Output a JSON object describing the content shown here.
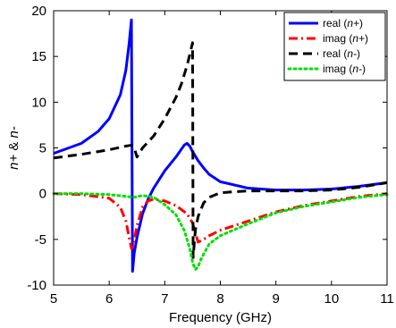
{
  "chart_data": {
    "type": "line",
    "xlabel": "Frequency (GHz)",
    "ylabel": "n+ & n-",
    "xlim": [
      5,
      11
    ],
    "ylim": [
      -10,
      20
    ],
    "xticks": [
      5,
      6,
      7,
      8,
      9,
      10,
      11
    ],
    "yticks": [
      -10,
      -5,
      0,
      5,
      10,
      15,
      20
    ],
    "xtick_labels": [
      "5",
      "6",
      "7",
      "8",
      "9",
      "10",
      "11"
    ],
    "ytick_labels": [
      "-10",
      "-5",
      "0",
      "5",
      "10",
      "15",
      "20"
    ],
    "grid": false,
    "legend_position": "top-right",
    "series": [
      {
        "name": "real (n+)",
        "color": "#0000ff",
        "style": "solid",
        "x": [
          5.0,
          5.5,
          5.8,
          6.0,
          6.2,
          6.3,
          6.36,
          6.4,
          6.41,
          6.42,
          6.45,
          6.5,
          6.6,
          6.7,
          6.8,
          7.0,
          7.2,
          7.35,
          7.4,
          7.45,
          7.5,
          7.6,
          7.7,
          7.8,
          8.0,
          8.5,
          9.0,
          9.5,
          10.0,
          10.5,
          11.0
        ],
        "y": [
          4.4,
          5.5,
          6.8,
          8.2,
          10.8,
          13.5,
          16.5,
          19.0,
          5.0,
          -8.5,
          -6.5,
          -4.8,
          -2.2,
          -0.6,
          0.6,
          2.5,
          4.0,
          5.3,
          5.5,
          5.2,
          4.6,
          3.6,
          2.8,
          2.1,
          1.3,
          0.6,
          0.4,
          0.4,
          0.5,
          0.8,
          1.2
        ]
      },
      {
        "name": "imag (n+)",
        "color": "#ff0000",
        "style": "dash-dot",
        "x": [
          5.0,
          5.5,
          6.0,
          6.2,
          6.3,
          6.35,
          6.4,
          6.43,
          6.5,
          6.6,
          6.7,
          6.8,
          7.0,
          7.2,
          7.4,
          7.5,
          7.6,
          7.7,
          7.8,
          8.0,
          8.5,
          9.0,
          9.5,
          10.0,
          10.5,
          11.0
        ],
        "y": [
          0.0,
          -0.1,
          -0.5,
          -1.5,
          -3.0,
          -4.5,
          -6.0,
          -5.8,
          -3.5,
          -1.5,
          -0.8,
          -0.6,
          -0.8,
          -1.3,
          -2.2,
          -3.2,
          -5.3,
          -5.0,
          -4.6,
          -4.0,
          -3.0,
          -2.0,
          -1.3,
          -0.8,
          -0.3,
          0.0
        ]
      },
      {
        "name": "real (n-)",
        "color": "#000000",
        "style": "dashed",
        "x": [
          5.0,
          5.5,
          6.0,
          6.3,
          6.4,
          6.45,
          6.5,
          6.6,
          6.8,
          7.0,
          7.2,
          7.3,
          7.4,
          7.45,
          7.5,
          7.51,
          7.55,
          7.6,
          7.7,
          7.8,
          8.0,
          8.5,
          9.0,
          9.5,
          10.0,
          10.5,
          11.0
        ],
        "y": [
          3.9,
          4.3,
          4.8,
          5.2,
          5.3,
          5.0,
          4.0,
          5.0,
          6.3,
          8.2,
          10.5,
          12.0,
          14.0,
          15.2,
          16.5,
          -7.0,
          -4.0,
          -2.5,
          -1.0,
          -0.4,
          0.1,
          0.3,
          0.3,
          0.3,
          0.4,
          0.7,
          1.2
        ]
      },
      {
        "name": "imag (n-)",
        "color": "#00e000",
        "style": "dotted",
        "x": [
          5.0,
          5.5,
          6.0,
          6.3,
          6.45,
          6.6,
          6.8,
          7.0,
          7.2,
          7.35,
          7.45,
          7.5,
          7.55,
          7.6,
          7.65,
          7.7,
          7.8,
          8.0,
          8.5,
          9.0,
          9.5,
          10.0,
          10.5,
          11.0
        ],
        "y": [
          0.0,
          0.0,
          -0.1,
          -0.3,
          -0.4,
          -0.2,
          -0.4,
          -1.2,
          -2.3,
          -4.0,
          -6.0,
          -7.5,
          -8.3,
          -8.0,
          -7.2,
          -6.6,
          -5.5,
          -4.6,
          -3.3,
          -2.1,
          -1.4,
          -0.9,
          -0.4,
          -0.1
        ]
      }
    ]
  }
}
